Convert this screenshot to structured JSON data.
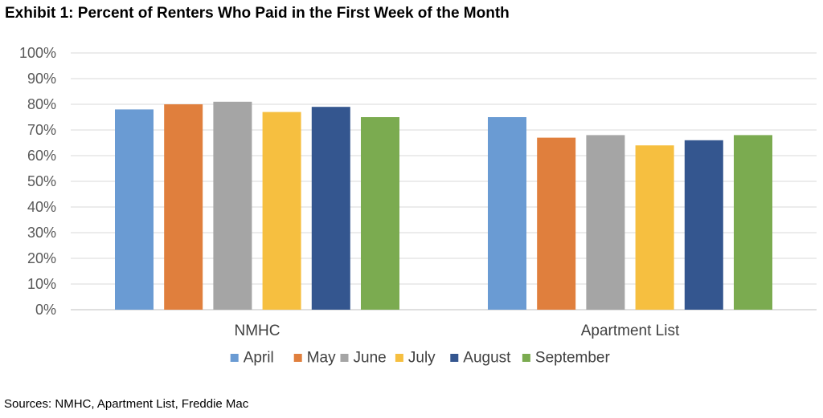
{
  "chart_data": {
    "type": "bar",
    "title": "Exhibit 1: Percent of Renters Who Paid in the First Week of the Month",
    "categories": [
      "NMHC",
      "Apartment List"
    ],
    "series": [
      {
        "name": "April",
        "color": "#6a9bd3",
        "values": [
          78,
          75
        ]
      },
      {
        "name": "May",
        "color": "#e07f3d",
        "values": [
          80,
          67
        ]
      },
      {
        "name": "June",
        "color": "#a5a5a5",
        "values": [
          81,
          68
        ]
      },
      {
        "name": "July",
        "color": "#f6bf40",
        "values": [
          77,
          64
        ]
      },
      {
        "name": "August",
        "color": "#34568f",
        "values": [
          79,
          66
        ]
      },
      {
        "name": "September",
        "color": "#7bab50",
        "values": [
          75,
          68
        ]
      }
    ],
    "ylim": [
      0,
      100
    ],
    "yticks": [
      0,
      10,
      20,
      30,
      40,
      50,
      60,
      70,
      80,
      90,
      100
    ],
    "ytick_labels": [
      "0%",
      "10%",
      "20%",
      "30%",
      "40%",
      "50%",
      "60%",
      "70%",
      "80%",
      "90%",
      "100%"
    ],
    "xlabel": "",
    "ylabel": "",
    "grid": true,
    "legend_position": "bottom"
  },
  "footer": {
    "source": "Sources: NMHC, Apartment List, Freddie Mac"
  }
}
